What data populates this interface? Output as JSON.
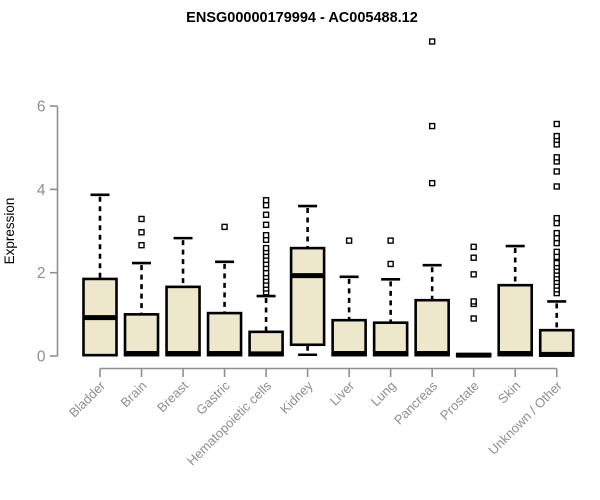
{
  "chart_data": {
    "type": "boxplot",
    "title": "ENSG00000179994 - AC005488.12",
    "ylabel": "Expression",
    "xlabel": "",
    "ylim": [
      0,
      6
    ],
    "yticks": [
      0,
      2,
      4,
      6
    ],
    "grid": false,
    "legend": false,
    "categories": [
      "Bladder",
      "Brain",
      "Breast",
      "Gastric",
      "Hematopoietic cells",
      "Kidney",
      "Liver",
      "Lung",
      "Pancreas",
      "Prostate",
      "Skin",
      "Unknown / Other"
    ],
    "series": [
      {
        "name": "Bladder",
        "low": 0.02,
        "q1": 0.02,
        "median": 0.92,
        "q3": 1.85,
        "high": 3.87,
        "outliers": []
      },
      {
        "name": "Brain",
        "low": 0.02,
        "q1": 0.02,
        "median": 0.06,
        "q3": 1.0,
        "high": 2.23,
        "outliers": [
          2.66,
          2.97,
          3.29
        ]
      },
      {
        "name": "Breast",
        "low": 0.02,
        "q1": 0.02,
        "median": 0.06,
        "q3": 1.66,
        "high": 2.83,
        "outliers": []
      },
      {
        "name": "Gastric",
        "low": 0.02,
        "q1": 0.02,
        "median": 0.06,
        "q3": 1.03,
        "high": 2.26,
        "outliers": [
          3.1
        ]
      },
      {
        "name": "Hematopoietic cells",
        "low": 0.02,
        "q1": 0.02,
        "median": 0.05,
        "q3": 0.58,
        "high": 1.44,
        "outliers": [
          1.53,
          1.62,
          1.71,
          1.81,
          1.9,
          1.99,
          2.11,
          2.21,
          2.31,
          2.41,
          2.5,
          2.59,
          2.79,
          2.9,
          3.15,
          3.39,
          3.62,
          3.74
        ]
      },
      {
        "name": "Kidney",
        "low": 0.03,
        "q1": 0.27,
        "median": 1.93,
        "q3": 2.59,
        "high": 3.6,
        "outliers": []
      },
      {
        "name": "Liver",
        "low": 0.02,
        "q1": 0.02,
        "median": 0.06,
        "q3": 0.86,
        "high": 1.9,
        "outliers": [
          2.77
        ]
      },
      {
        "name": "Lung",
        "low": 0.02,
        "q1": 0.02,
        "median": 0.06,
        "q3": 0.8,
        "high": 1.84,
        "outliers": [
          2.21,
          2.77
        ]
      },
      {
        "name": "Pancreas",
        "low": 0.02,
        "q1": 0.02,
        "median": 0.06,
        "q3": 1.34,
        "high": 2.18,
        "outliers": [
          4.15,
          5.52,
          7.55
        ]
      },
      {
        "name": "Prostate",
        "low": 0.01,
        "q1": 0.01,
        "median": 0.02,
        "q3": 0.04,
        "high": 0.04,
        "outliers": [
          0.9,
          1.25,
          1.31,
          1.96,
          2.36,
          2.62
        ]
      },
      {
        "name": "Skin",
        "low": 0.02,
        "q1": 0.02,
        "median": 0.06,
        "q3": 1.7,
        "high": 2.64,
        "outliers": []
      },
      {
        "name": "Unknown / Other",
        "low": 0.01,
        "q1": 0.01,
        "median": 0.04,
        "q3": 0.62,
        "high": 1.31,
        "outliers": [
          1.51,
          1.6,
          1.69,
          1.78,
          1.87,
          1.96,
          2.05,
          2.14,
          2.23,
          2.38,
          2.5,
          2.71,
          2.83,
          2.95,
          3.19,
          3.31,
          4.07,
          4.43,
          4.67,
          4.77,
          5.08,
          5.19,
          5.28,
          5.57
        ]
      }
    ],
    "style": {
      "box_fill": "#EDE7CB",
      "box_stroke": "#000000",
      "median_color": "#000000",
      "whisker_color": "#000000",
      "outlier_fill": "#ffffff",
      "axis_color": "#8f8f8f",
      "tick_label_color": "#8e8e8e",
      "title_color": "#000000"
    }
  }
}
